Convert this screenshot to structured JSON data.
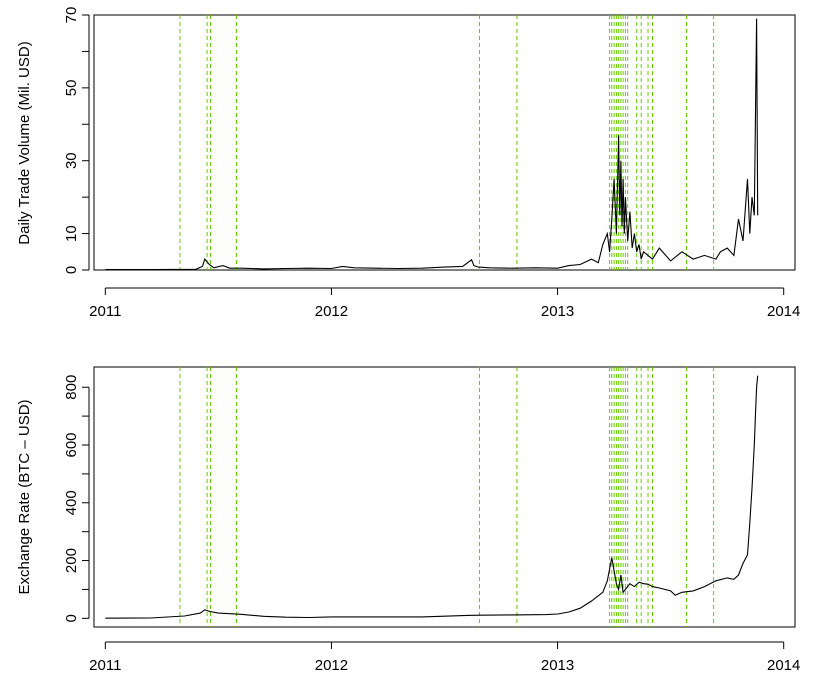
{
  "colors": {
    "line": "#000000",
    "event_lines": "#66cc00",
    "frame": "#000000"
  },
  "events": [
    2011.33,
    2011.45,
    2011.465,
    2011.58,
    2012.655,
    2012.82,
    2013.23,
    2013.24,
    2013.25,
    2013.26,
    2013.27,
    2013.28,
    2013.29,
    2013.3,
    2013.31,
    2013.35,
    2013.37,
    2013.4,
    2013.42,
    2013.57,
    2013.69
  ],
  "chart_data": [
    {
      "type": "line",
      "title": "",
      "xlabel": "",
      "ylabel": "Daily Trade Volume (Mil. USD)",
      "xlim": [
        2010.95,
        2014.05
      ],
      "ylim": [
        0,
        70
      ],
      "x_ticks": [
        2011,
        2012,
        2013,
        2014
      ],
      "x_tick_labels": [
        "2011",
        "2012",
        "2013",
        "2014"
      ],
      "y_ticks": [
        0,
        10,
        30,
        50,
        70
      ],
      "y_tick_labels": [
        "0",
        "10",
        "30",
        "50",
        "70"
      ],
      "y_minor_ticks": [
        20,
        40,
        60
      ],
      "series": [
        {
          "x": [
            2011.0,
            2011.2,
            2011.4,
            2011.43,
            2011.44,
            2011.46,
            2011.48,
            2011.52,
            2011.55,
            2011.6,
            2011.7,
            2011.8,
            2011.9,
            2012.0,
            2012.05,
            2012.1,
            2012.2,
            2012.3,
            2012.4,
            2012.5,
            2012.58,
            2012.62,
            2012.63,
            2012.65,
            2012.7,
            2012.8,
            2012.9,
            2013.0,
            2013.05,
            2013.1,
            2013.15,
            2013.18,
            2013.2,
            2013.22,
            2013.23,
            2013.24,
            2013.25,
            2013.26,
            2013.27,
            2013.275,
            2013.28,
            2013.285,
            2013.29,
            2013.295,
            2013.3,
            2013.31,
            2013.32,
            2013.33,
            2013.34,
            2013.35,
            2013.36,
            2013.37,
            2013.38,
            2013.4,
            2013.42,
            2013.45,
            2013.5,
            2013.55,
            2013.6,
            2013.65,
            2013.7,
            2013.72,
            2013.75,
            2013.78,
            2013.8,
            2013.82,
            2013.84,
            2013.85,
            2013.86,
            2013.87,
            2013.88,
            2013.885
          ],
          "y": [
            0.1,
            0.1,
            0.2,
            1.0,
            3.0,
            1.5,
            0.6,
            1.2,
            0.5,
            0.5,
            0.3,
            0.4,
            0.5,
            0.4,
            1.0,
            0.6,
            0.5,
            0.4,
            0.5,
            0.8,
            1.0,
            2.8,
            1.2,
            0.8,
            0.6,
            0.5,
            0.6,
            0.5,
            1.2,
            1.5,
            3.0,
            2.0,
            7.0,
            10.0,
            5.0,
            14.0,
            25.0,
            10.0,
            37.0,
            15.0,
            30.0,
            12.0,
            25.0,
            10.0,
            20.0,
            8.0,
            16.0,
            6.0,
            10.0,
            5.0,
            7.0,
            3.0,
            5.0,
            4.0,
            3.0,
            6.0,
            2.5,
            5.0,
            3.0,
            4.0,
            3.0,
            5.0,
            6.0,
            4.0,
            14.0,
            8.0,
            25.0,
            10.0,
            20.0,
            15.0,
            69.0,
            15.0
          ]
        }
      ]
    },
    {
      "type": "line",
      "title": "",
      "xlabel": "",
      "ylabel": "Exchange Rate (BTC – USD)",
      "xlim": [
        2010.95,
        2014.05
      ],
      "ylim": [
        -30,
        870
      ],
      "x_ticks": [
        2011,
        2012,
        2013,
        2014
      ],
      "x_tick_labels": [
        "2011",
        "2012",
        "2013",
        "2014"
      ],
      "y_ticks": [
        0,
        200,
        400,
        600,
        800
      ],
      "y_tick_labels": [
        "0",
        "200",
        "400",
        "600",
        "800"
      ],
      "y_minor_ticks": [
        100,
        300,
        500,
        700
      ],
      "series": [
        {
          "x": [
            2011.0,
            2011.2,
            2011.35,
            2011.42,
            2011.44,
            2011.46,
            2011.5,
            2011.6,
            2011.7,
            2011.8,
            2011.9,
            2012.0,
            2012.2,
            2012.4,
            2012.6,
            2012.65,
            2012.8,
            2012.95,
            2013.0,
            2013.05,
            2013.1,
            2013.15,
            2013.2,
            2013.22,
            2013.24,
            2013.26,
            2013.27,
            2013.28,
            2013.29,
            2013.3,
            2013.32,
            2013.34,
            2013.36,
            2013.38,
            2013.4,
            2013.42,
            2013.45,
            2013.5,
            2013.52,
            2013.55,
            2013.6,
            2013.65,
            2013.7,
            2013.75,
            2013.78,
            2013.8,
            2013.82,
            2013.84,
            2013.85,
            2013.86,
            2013.87,
            2013.875,
            2013.88,
            2013.885
          ],
          "y": [
            0.5,
            1,
            8,
            18,
            30,
            24,
            18,
            14,
            7,
            4,
            3,
            5,
            5,
            5,
            10,
            11,
            12,
            13,
            15,
            22,
            35,
            60,
            90,
            130,
            210,
            120,
            100,
            150,
            90,
            100,
            120,
            110,
            125,
            120,
            118,
            110,
            105,
            95,
            80,
            90,
            95,
            110,
            130,
            140,
            135,
            150,
            190,
            220,
            330,
            450,
            600,
            700,
            800,
            840
          ]
        }
      ]
    }
  ]
}
